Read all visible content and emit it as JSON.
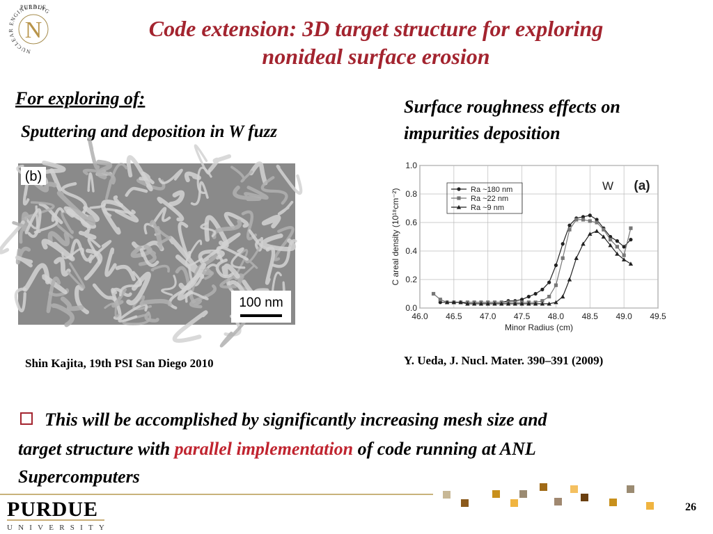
{
  "header": {
    "title_lines": [
      "Code extension: 3D target structure for exploring",
      "nonideal surface erosion"
    ],
    "logo_top": "PURDUE",
    "logo_ring": "NUCLEAR ENGINEERING",
    "logo_letter": "N"
  },
  "left": {
    "heading": "For exploring of:",
    "subheading": "Sputtering and deposition in W fuzz",
    "image_label": "(b)",
    "scale_bar": "100 nm",
    "citation": "Shin Kajita, 19th PSI San Diego 2010"
  },
  "right": {
    "heading_lines": [
      "Surface roughness effects on",
      "impurities deposition"
    ],
    "citation": "Y. Ueda, J. Nucl. Mater. 390–391 (2009)"
  },
  "chart_data": {
    "type": "line",
    "x_label": "Minor Radius (cm)",
    "y_label": "C areal density (10¹⁸cm⁻²)",
    "annotations": [
      "W",
      "(a)"
    ],
    "x": [
      46.2,
      46.3,
      46.4,
      46.5,
      46.6,
      46.7,
      46.8,
      46.9,
      47.0,
      47.1,
      47.2,
      47.3,
      47.4,
      47.5,
      47.6,
      47.7,
      47.8,
      47.9,
      48.0,
      48.1,
      48.2,
      48.3,
      48.4,
      48.5,
      48.6,
      48.7,
      48.8,
      48.9,
      49.0,
      49.1
    ],
    "series": [
      {
        "name": "Ra ~180 nm",
        "color": "#222222",
        "marker": "circle",
        "values": [
          null,
          0.04,
          0.04,
          0.04,
          0.04,
          0.04,
          0.04,
          0.04,
          0.04,
          0.04,
          0.04,
          0.05,
          0.05,
          0.06,
          0.08,
          0.1,
          0.13,
          0.18,
          0.3,
          0.45,
          0.58,
          0.63,
          0.64,
          0.65,
          0.62,
          0.56,
          0.5,
          0.47,
          0.43,
          0.48
        ]
      },
      {
        "name": "Ra ~22 nm",
        "color": "#777777",
        "marker": "square",
        "values": [
          0.1,
          0.06,
          0.04,
          0.04,
          0.04,
          0.04,
          0.04,
          0.04,
          0.04,
          0.04,
          0.04,
          0.04,
          0.04,
          0.04,
          0.04,
          0.04,
          0.05,
          0.08,
          0.16,
          0.35,
          0.55,
          0.62,
          0.62,
          0.61,
          0.6,
          0.55,
          0.48,
          0.43,
          0.37,
          0.56
        ]
      },
      {
        "name": "Ra ~9 nm",
        "color": "#222222",
        "marker": "triangle",
        "values": [
          null,
          null,
          0.04,
          0.04,
          0.04,
          0.03,
          0.03,
          0.03,
          0.03,
          0.03,
          0.03,
          0.03,
          0.03,
          0.03,
          0.03,
          0.03,
          0.03,
          0.03,
          0.04,
          0.08,
          0.2,
          0.35,
          0.45,
          0.52,
          0.54,
          0.5,
          0.44,
          0.38,
          0.34,
          0.31
        ]
      }
    ],
    "xlim": [
      46.0,
      49.5
    ],
    "ylim": [
      0,
      1.0
    ],
    "xticks": [
      {
        "value": 46,
        "label": "46.0"
      },
      46.5,
      {
        "value": 47,
        "label": "47.0"
      },
      47.5,
      {
        "value": 48,
        "label": "48.0"
      },
      48.5,
      {
        "value": 49,
        "label": "49.0"
      },
      49.5
    ],
    "yticks": [
      {
        "value": 0,
        "label": "0.0"
      },
      0.2,
      0.4,
      0.6,
      0.8,
      {
        "value": 1,
        "label": "1.0"
      }
    ],
    "grid": true,
    "legend": "upper left"
  },
  "bullet": {
    "lines": [
      "This will be accomplished by significantly increasing mesh size and",
      "target structure with",
      "parallel implementation",
      "of code running at ANL",
      "Supercomputers"
    ]
  },
  "footer": {
    "logo": "PURDUE",
    "logo_sub": "UNIVERSITY",
    "page": "26"
  }
}
